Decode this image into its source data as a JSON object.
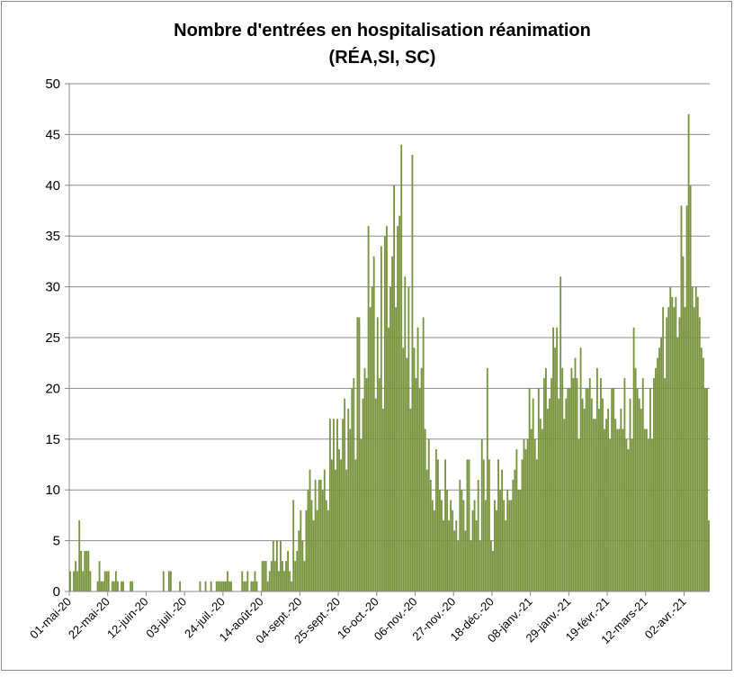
{
  "chart_data": {
    "type": "bar",
    "title": "Nombre d'entrées en hospitalisation réanimation",
    "subtitle": "(RÉA,SI, SC)",
    "color": "#77933c",
    "grid": true,
    "ylim": [
      0,
      50
    ],
    "yticks": [
      0,
      5,
      10,
      15,
      20,
      25,
      30,
      35,
      40,
      45,
      50
    ],
    "categories": [
      "01-mai-20",
      null,
      null,
      null,
      null,
      null,
      null,
      null,
      null,
      null,
      null,
      null,
      null,
      null,
      null,
      null,
      null,
      null,
      null,
      null,
      null,
      "22-mai-20",
      null,
      null,
      null,
      null,
      null,
      null,
      null,
      null,
      null,
      null,
      null,
      null,
      null,
      null,
      null,
      null,
      null,
      null,
      null,
      null,
      "12-juin-20",
      null,
      null,
      null,
      null,
      null,
      null,
      null,
      null,
      null,
      null,
      null,
      null,
      null,
      null,
      null,
      null,
      null,
      null,
      null,
      null,
      "03-juil.-20",
      null,
      null,
      null,
      null,
      null,
      null,
      null,
      null,
      null,
      null,
      null,
      null,
      null,
      null,
      null,
      null,
      null,
      null,
      null,
      null,
      "24-juil.-20",
      null,
      null,
      null,
      null,
      null,
      null,
      null,
      null,
      null,
      null,
      null,
      null,
      null,
      null,
      null,
      null,
      null,
      null,
      null,
      null,
      "14-août-20",
      null,
      null,
      null,
      null,
      null,
      null,
      null,
      null,
      null,
      null,
      null,
      null,
      null,
      null,
      null,
      null,
      null,
      null,
      null,
      null,
      "04-sept.-20",
      null,
      null,
      null,
      null,
      null,
      null,
      null,
      null,
      null,
      null,
      null,
      null,
      null,
      null,
      null,
      null,
      null,
      null,
      null,
      null,
      "25-sept.-20",
      null,
      null,
      null,
      null,
      null,
      null,
      null,
      null,
      null,
      null,
      null,
      null,
      null,
      null,
      null,
      null,
      null,
      null,
      null,
      null,
      "16-oct.-20",
      null,
      null,
      null,
      null,
      null,
      null,
      null,
      null,
      null,
      null,
      null,
      null,
      null,
      null,
      null,
      null,
      null,
      null,
      null,
      null,
      "06-nov.-20",
      null,
      null,
      null,
      null,
      null,
      null,
      null,
      null,
      null,
      null,
      null,
      null,
      null,
      null,
      null,
      null,
      null,
      null,
      null,
      null,
      "27-nov.-20",
      null,
      null,
      null,
      null,
      null,
      null,
      null,
      null,
      null,
      null,
      null,
      null,
      null,
      null,
      null,
      null,
      null,
      null,
      null,
      null,
      "18-déc.-20",
      null,
      null,
      null,
      null,
      null,
      null,
      null,
      null,
      null,
      null,
      null,
      null,
      null,
      null,
      null,
      null,
      null,
      null,
      null,
      null,
      "08-janv.-21",
      null,
      null,
      null,
      null,
      null,
      null,
      null,
      null,
      null,
      null,
      null,
      null,
      null,
      null,
      null,
      null,
      null,
      null,
      null,
      null,
      "29-janv.-21",
      null,
      null,
      null,
      null,
      null,
      null,
      null,
      null,
      null,
      null,
      null,
      null,
      null,
      null,
      null,
      null,
      null,
      null,
      null,
      null,
      "19-févr.-21",
      null,
      null,
      null,
      null,
      null,
      null,
      null,
      null,
      null,
      null,
      null,
      null,
      null,
      null,
      null,
      null,
      null,
      null,
      null,
      null,
      "12-mars-21",
      null,
      null,
      null,
      null,
      null,
      null,
      null,
      null,
      null,
      null,
      null,
      null,
      null,
      null,
      null,
      null,
      null,
      null,
      null,
      null,
      "02-avr.-21",
      null,
      null,
      null,
      null,
      null,
      null,
      null,
      null,
      null,
      null,
      null,
      null,
      null
    ],
    "values": [
      2,
      0,
      2,
      3,
      2,
      7,
      4,
      2,
      4,
      4,
      4,
      2,
      0,
      0,
      0,
      1,
      3,
      1,
      1,
      2,
      2,
      2,
      0,
      1,
      1,
      2,
      1,
      0,
      1,
      1,
      0,
      0,
      0,
      1,
      1,
      0,
      0,
      0,
      0,
      0,
      0,
      0,
      0,
      0,
      0,
      0,
      0,
      0,
      0,
      0,
      0,
      2,
      0,
      0,
      2,
      2,
      0,
      0,
      0,
      0,
      1,
      0,
      0,
      0,
      0,
      0,
      0,
      0,
      0,
      0,
      0,
      1,
      0,
      0,
      1,
      0,
      0,
      1,
      0,
      0,
      1,
      1,
      1,
      1,
      1,
      1,
      2,
      1,
      1,
      0,
      0,
      0,
      0,
      0,
      2,
      1,
      1,
      2,
      0,
      1,
      1,
      2,
      1,
      0,
      0,
      3,
      3,
      3,
      1,
      2,
      3,
      5,
      3,
      5,
      2,
      5,
      3,
      2,
      3,
      4,
      2,
      1,
      9,
      3,
      4,
      6,
      8,
      5,
      3,
      8,
      10,
      12,
      9,
      7,
      11,
      8,
      11,
      11,
      10,
      12,
      9,
      8,
      17,
      13,
      17,
      12,
      17,
      14,
      13,
      17,
      19,
      12,
      18,
      16,
      20,
      21,
      13,
      27,
      27,
      15,
      19,
      22,
      21,
      36,
      28,
      30,
      33,
      19,
      27,
      21,
      34,
      18,
      35,
      36,
      26,
      30,
      33,
      40,
      28,
      36,
      37,
      44,
      24,
      31,
      23,
      30,
      18,
      43,
      24,
      21,
      26,
      20,
      22,
      27,
      16,
      12,
      15,
      11,
      9,
      8,
      14,
      13,
      10,
      9,
      7,
      13,
      10,
      7,
      9,
      8,
      6,
      7,
      5,
      11,
      10,
      9,
      6,
      13,
      13,
      5,
      8,
      9,
      7,
      11,
      5,
      15,
      13,
      9,
      22,
      13,
      5,
      4,
      9,
      8,
      13,
      10,
      12,
      9,
      7,
      10,
      9,
      9,
      11,
      12,
      14,
      10,
      10,
      13,
      15,
      14,
      15,
      20,
      16,
      19,
      15,
      13,
      20,
      17,
      16,
      21,
      22,
      18,
      19,
      21,
      26,
      24,
      26,
      19,
      31,
      22,
      17,
      19,
      20,
      20,
      22,
      21,
      23,
      21,
      15,
      24,
      19,
      18,
      20,
      20,
      21,
      19,
      17,
      17,
      22,
      18,
      21,
      19,
      16,
      17,
      18,
      15,
      20,
      20,
      17,
      16,
      16,
      18,
      16,
      21,
      15,
      14,
      19,
      15,
      26,
      22,
      20,
      19,
      18,
      21,
      16,
      16,
      15,
      20,
      15,
      21,
      22,
      23,
      24,
      25,
      28,
      21,
      27,
      28,
      30,
      29,
      28,
      29,
      25,
      27,
      38,
      33,
      28,
      38,
      47,
      40,
      30,
      28,
      30,
      29,
      27,
      24,
      23,
      20,
      20,
      7
    ]
  }
}
